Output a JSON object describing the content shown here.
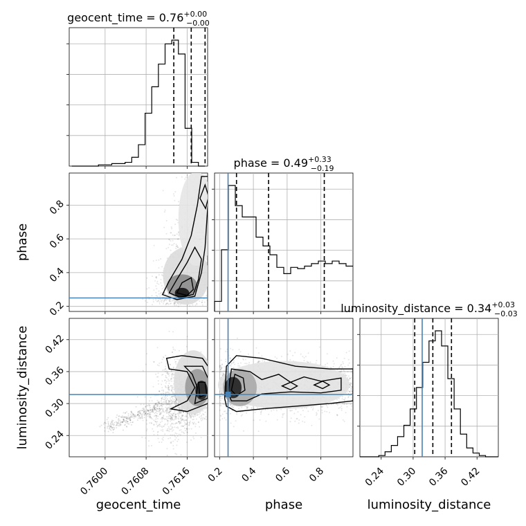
{
  "chart_data": {
    "type": "corner",
    "parameters": [
      "geocent_time",
      "phase",
      "luminosity_distance"
    ],
    "truth_color": "#4682b4",
    "truths": {
      "phase": 0.25,
      "luminosity_distance": 0.317
    },
    "panels": {
      "geocent_time": {
        "title_prefix": "geocent_time = 0.76",
        "title_plus": "+0.00",
        "title_minus": "−0.00",
        "xlim": [
          0.7593,
          0.762
        ],
        "ticks": [
          0.76,
          0.7608,
          0.7616
        ],
        "tick_labels": [
          "0.7600",
          "0.7608",
          "0.7616"
        ],
        "quantiles": [
          0.76134,
          0.76168,
          0.76195
        ],
        "hist_edges_start": 0.75935,
        "hist_bin_width": 0.00013,
        "hist": [
          0.0,
          0.0,
          0.0,
          0.0,
          0.01,
          0.01,
          0.02,
          0.02,
          0.03,
          0.07,
          0.17,
          0.42,
          0.63,
          0.81,
          0.97,
          1.0,
          0.89,
          0.3,
          0.03,
          0.0
        ]
      },
      "phase": {
        "title_prefix": "phase = 0.49",
        "title_plus": "+0.33",
        "title_minus": "−0.19",
        "xlim": [
          0.17,
          0.99
        ],
        "ticks": [
          0.2,
          0.4,
          0.6,
          0.8
        ],
        "tick_labels": [
          "0.2",
          "0.4",
          "0.6",
          "0.8"
        ],
        "quantiles": [
          0.3,
          0.49,
          0.82
        ],
        "hist_edges_start": 0.17,
        "hist_bin_width": 0.041,
        "hist": [
          0.08,
          0.49,
          1.0,
          0.84,
          0.75,
          0.75,
          0.59,
          0.52,
          0.45,
          0.35,
          0.3,
          0.35,
          0.34,
          0.36,
          0.38,
          0.4,
          0.38,
          0.4,
          0.38,
          0.36
        ]
      },
      "luminosity_distance": {
        "title_prefix": "luminosity_distance = 0.34",
        "title_plus": "+0.03",
        "title_minus": "−0.03",
        "xlim": [
          0.2,
          0.46
        ],
        "ticks": [
          0.24,
          0.3,
          0.36,
          0.42
        ],
        "tick_labels": [
          "0.24",
          "0.30",
          "0.36",
          "0.42"
        ],
        "quantiles": [
          0.303,
          0.337,
          0.372
        ],
        "hist_edges_start": 0.2,
        "hist_bin_width": 0.0118,
        "hist": [
          0.0,
          0.0,
          0.0,
          0.01,
          0.04,
          0.09,
          0.16,
          0.25,
          0.38,
          0.55,
          0.75,
          0.92,
          1.0,
          0.88,
          0.62,
          0.38,
          0.18,
          0.07,
          0.03,
          0.01,
          0.0,
          0.0
        ]
      },
      "phase_y": {
        "ylim": [
          0.17,
          0.99
        ],
        "ticks": [
          0.2,
          0.4,
          0.6,
          0.8
        ],
        "tick_labels": [
          "0.2",
          "0.4",
          "0.6",
          "0.8"
        ]
      },
      "luminosity_distance_y": {
        "ylim": [
          0.2,
          0.46
        ],
        "ticks": [
          0.24,
          0.3,
          0.36,
          0.42
        ],
        "tick_labels": [
          "0.24",
          "0.30",
          "0.36",
          "0.42"
        ]
      }
    },
    "xlabels": [
      "geocent_time",
      "phase",
      "luminosity_distance"
    ],
    "ylabels": [
      "phase",
      "luminosity_distance"
    ],
    "grid": true
  }
}
